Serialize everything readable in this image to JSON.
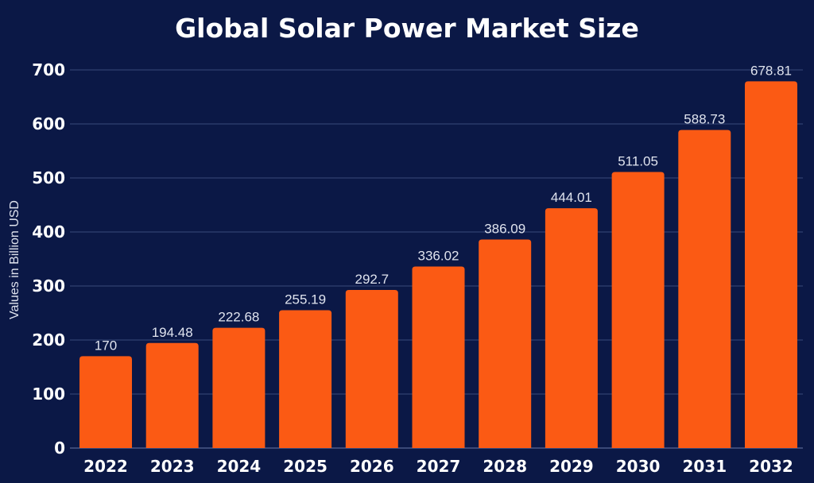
{
  "chart_data": {
    "type": "bar",
    "title": "Global Solar Power Market Size",
    "xlabel": "",
    "ylabel": "Values in Billion USD",
    "categories": [
      "2022",
      "2023",
      "2024",
      "2025",
      "2026",
      "2027",
      "2028",
      "2029",
      "2030",
      "2031",
      "2032"
    ],
    "values": [
      170,
      194.48,
      222.68,
      255.19,
      292.7,
      336.02,
      386.09,
      444.01,
      511.05,
      588.73,
      678.81
    ],
    "data_labels": [
      "170",
      "194.48",
      "222.68",
      "255.19",
      "292.7",
      "336.02",
      "386.09",
      "444.01",
      "511.05",
      "588.73",
      "678.81"
    ],
    "ylim": [
      0,
      700
    ],
    "yticks": [
      0,
      100,
      200,
      300,
      400,
      500,
      600,
      700
    ],
    "grid": true,
    "legend": "none",
    "colors": {
      "background": "#0b1846",
      "bar": "#fb5a14",
      "grid": "#3a4a7a",
      "text": "#ffffff"
    }
  }
}
